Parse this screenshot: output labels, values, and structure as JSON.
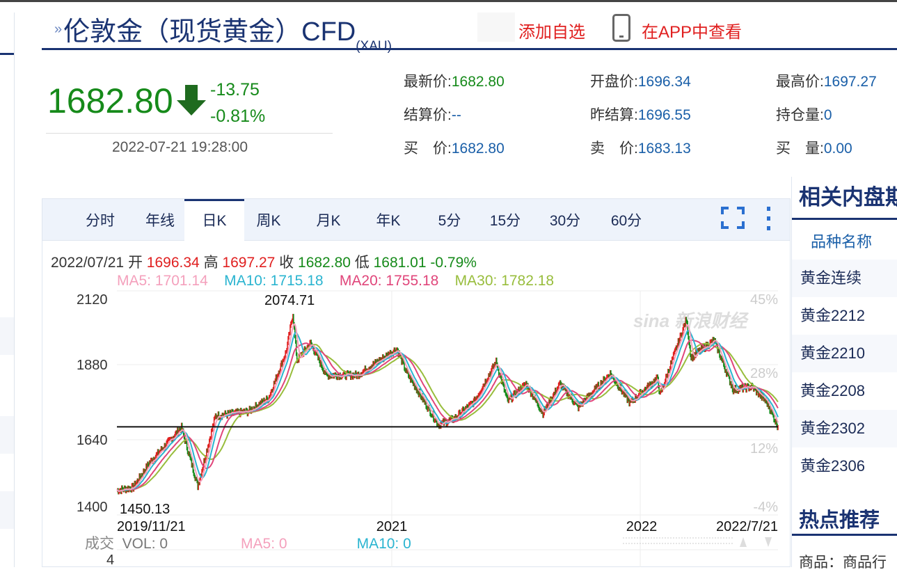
{
  "header": {
    "title": "伦敦金（现货黄金）CFD",
    "title_sub": "(XAU)",
    "add_watchlist": "添加自选",
    "view_in_app": "在APP中查看"
  },
  "quote": {
    "price": "1682.80",
    "change": "-13.75",
    "change_pct": "-0.81%",
    "time": "2022-07-21 19:28:00",
    "direction": "down",
    "fields": [
      {
        "label": "最新价:",
        "value": "1682.80",
        "color": "green"
      },
      {
        "label": "开盘价:",
        "value": "1696.34"
      },
      {
        "label": "最高价:",
        "value": "1697.27"
      },
      {
        "label": "结算价:",
        "value": "--"
      },
      {
        "label": "昨结算:",
        "value": "1696.55"
      },
      {
        "label": "持仓量:",
        "value": "0"
      },
      {
        "label": "买　价:",
        "value": "1682.80"
      },
      {
        "label": "卖　价:",
        "value": "1683.13"
      },
      {
        "label": "买　量:",
        "value": "0.00"
      }
    ]
  },
  "chart_tabs": [
    "分时",
    "年线",
    "日K",
    "周K",
    "月K",
    "年K",
    "5分",
    "15分",
    "30分",
    "60分"
  ],
  "active_tab": "日K",
  "ohlc": {
    "date": "2022/07/21",
    "open_label": "开",
    "open": "1696.34",
    "high_label": "高",
    "high": "1697.27",
    "close_label": "收",
    "close": "1682.80",
    "low_label": "低",
    "low": "1681.01",
    "pct": "-0.79%"
  },
  "ma": {
    "ma5": "MA5: 1701.14",
    "ma10": "MA10: 1715.18",
    "ma20": "MA20: 1755.18",
    "ma30": "MA30: 1782.18"
  },
  "volume": {
    "label": "成交",
    "vol": "VOL: 0",
    "ma5": "MA5: 0",
    "ma10": "MA10: 0",
    "axis_value": "4"
  },
  "colors": {
    "up": "#e02020",
    "down": "#168a1a",
    "ma5": "#f4a0bc",
    "ma10": "#2ab4d0",
    "ma20": "#e0457a",
    "ma30": "#98bd3c",
    "brand": "#1a3372"
  },
  "chart_data": {
    "type": "line",
    "y_ticks": [
      "2120",
      "1880",
      "1640",
      "1400"
    ],
    "ylim": [
      1400,
      2120
    ],
    "right_ticks": [
      "45%",
      "28%",
      "12%",
      "-4%"
    ],
    "x_ticks": [
      "2019/11/21",
      "2021",
      "2022",
      "2022/7/21"
    ],
    "max_label": "2074.71",
    "min_label": "1450.13",
    "reference_line": 1682.8,
    "watermark": "sina新浪财经",
    "x": [
      "2019-11-21",
      "2019-12-15",
      "2020-01-08",
      "2020-02-24",
      "2020-03-19",
      "2020-04-14",
      "2020-06-01",
      "2020-07-01",
      "2020-07-27",
      "2020-08-06",
      "2020-08-12",
      "2020-09-01",
      "2020-09-24",
      "2020-11-09",
      "2021-01-06",
      "2021-01-20",
      "2021-03-08",
      "2021-03-31",
      "2021-04-30",
      "2021-06-01",
      "2021-06-18",
      "2021-07-15",
      "2021-08-09",
      "2021-09-03",
      "2021-09-30",
      "2021-11-16",
      "2021-12-15",
      "2022-01-25",
      "2022-01-28",
      "2022-03-08",
      "2022-03-15",
      "2022-04-18",
      "2022-05-16",
      "2022-06-13",
      "2022-07-05",
      "2022-07-21"
    ],
    "close": [
      1465,
      1475,
      1560,
      1680,
      1480,
      1720,
      1735,
      1780,
      1940,
      2070,
      1910,
      1970,
      1860,
      1860,
      1950,
      1870,
      1690,
      1710,
      1770,
      1905,
      1770,
      1830,
      1730,
      1830,
      1750,
      1865,
      1765,
      1850,
      1790,
      2050,
      1920,
      1980,
      1810,
      1820,
      1765,
      1682.8
    ]
  },
  "related": {
    "title": "相关内盘期",
    "header": "品种名称",
    "items": [
      "黄金连续",
      "黄金2212",
      "黄金2210",
      "黄金2208",
      "黄金2302",
      "黄金2306"
    ]
  },
  "hot": {
    "title": "热点推荐",
    "item": "商品：商品行"
  }
}
